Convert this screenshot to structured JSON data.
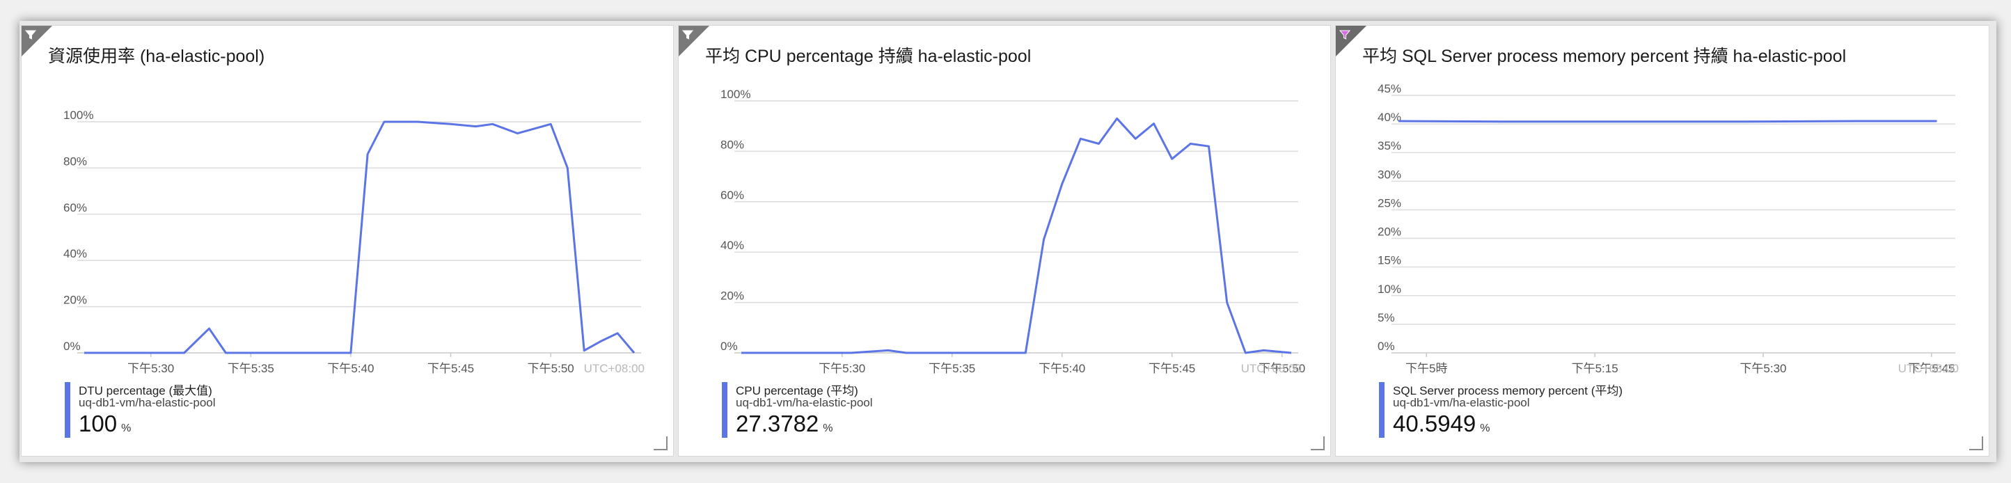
{
  "colors": {
    "series": "#5b74e6",
    "grid": "#dcdcdc",
    "axis": "#c8c8c8",
    "filter_icon_pink": "#c85ad0"
  },
  "tiles": [
    {
      "title": "資源使用率 (ha-elastic-pool)",
      "filter_icon": "filter-icon",
      "legend": {
        "metric": "DTU percentage (最大值)",
        "resource": "uq-db1-vm/ha-elastic-pool",
        "value": "100",
        "unit": "%"
      },
      "timezone": "UTC+08:00"
    },
    {
      "title": "平均 CPU percentage 持續 ha-elastic-pool",
      "filter_icon": "filter-icon",
      "legend": {
        "metric": "CPU percentage (平均)",
        "resource": "uq-db1-vm/ha-elastic-pool",
        "value": "27.3782",
        "unit": "%"
      },
      "timezone": "UTC+08:00"
    },
    {
      "title": "平均 SQL Server process memory percent 持續 ha-elastic-pool",
      "filter_icon": "filter-icon",
      "legend": {
        "metric": "SQL Server process memory percent (平均)",
        "resource": "uq-db1-vm/ha-elastic-pool",
        "value": "40.5949",
        "unit": "%"
      },
      "timezone": "UTC+08:00"
    }
  ],
  "chart_data": [
    {
      "type": "line",
      "yticks": [
        "0%",
        "20%",
        "40%",
        "60%",
        "80%",
        "100%"
      ],
      "ylim": [
        0,
        100
      ],
      "xticks": [
        "下午5:30",
        "下午5:35",
        "下午5:40",
        "下午5:45",
        "下午5:50"
      ],
      "grid": true,
      "series": [
        {
          "values": [
            [
              0,
              0
            ],
            [
              1.67,
              0
            ],
            [
              3.33,
              0
            ],
            [
              5,
              0
            ],
            [
              6.25,
              10.5
            ],
            [
              7.08,
              0
            ],
            [
              8.33,
              0
            ],
            [
              10,
              0
            ],
            [
              11.67,
              0
            ],
            [
              13.33,
              0
            ],
            [
              14.17,
              86
            ],
            [
              15,
              100
            ],
            [
              16.67,
              100
            ],
            [
              18.33,
              99
            ],
            [
              19.58,
              98
            ],
            [
              20.42,
              99
            ],
            [
              21.67,
              95
            ],
            [
              23.33,
              99
            ],
            [
              24.17,
              80
            ],
            [
              25,
              1
            ],
            [
              25.83,
              5
            ],
            [
              26.67,
              8.5
            ],
            [
              27.5,
              0
            ]
          ]
        }
      ]
    },
    {
      "type": "line",
      "yticks": [
        "0%",
        "20%",
        "40%",
        "60%",
        "80%",
        "100%"
      ],
      "ylim": [
        0,
        100
      ],
      "xticks": [
        "下午5:30",
        "下午5:35",
        "下午5:40",
        "下午5:45",
        "下午5:50"
      ],
      "grid": true,
      "series": [
        {
          "values": [
            [
              0,
              0
            ],
            [
              1.67,
              0
            ],
            [
              3.33,
              0
            ],
            [
              5,
              0
            ],
            [
              6.67,
              1
            ],
            [
              7.5,
              0
            ],
            [
              8.33,
              0
            ],
            [
              10,
              0
            ],
            [
              11.67,
              0
            ],
            [
              12.92,
              0
            ],
            [
              13.75,
              45
            ],
            [
              14.58,
              67
            ],
            [
              15.42,
              85
            ],
            [
              16.25,
              83
            ],
            [
              17.08,
              93
            ],
            [
              17.92,
              85
            ],
            [
              18.75,
              91
            ],
            [
              19.58,
              77
            ],
            [
              20.42,
              83
            ],
            [
              21.25,
              82
            ],
            [
              22.08,
              20
            ],
            [
              22.92,
              0
            ],
            [
              23.75,
              1
            ],
            [
              25,
              0
            ]
          ]
        }
      ]
    },
    {
      "type": "line",
      "yticks": [
        "0%",
        "5%",
        "10%",
        "15%",
        "20%",
        "25%",
        "30%",
        "35%",
        "40%",
        "45%"
      ],
      "ylim": [
        0,
        45
      ],
      "xticks": [
        "下午5時",
        "下午5:15",
        "下午5:30",
        "下午5:45"
      ],
      "grid": true,
      "series": [
        {
          "values": [
            [
              0,
              40.5
            ],
            [
              10,
              40.4
            ],
            [
              20,
              40.4
            ],
            [
              30,
              40.4
            ],
            [
              40,
              40.5
            ],
            [
              47,
              40.5
            ]
          ]
        }
      ]
    }
  ]
}
